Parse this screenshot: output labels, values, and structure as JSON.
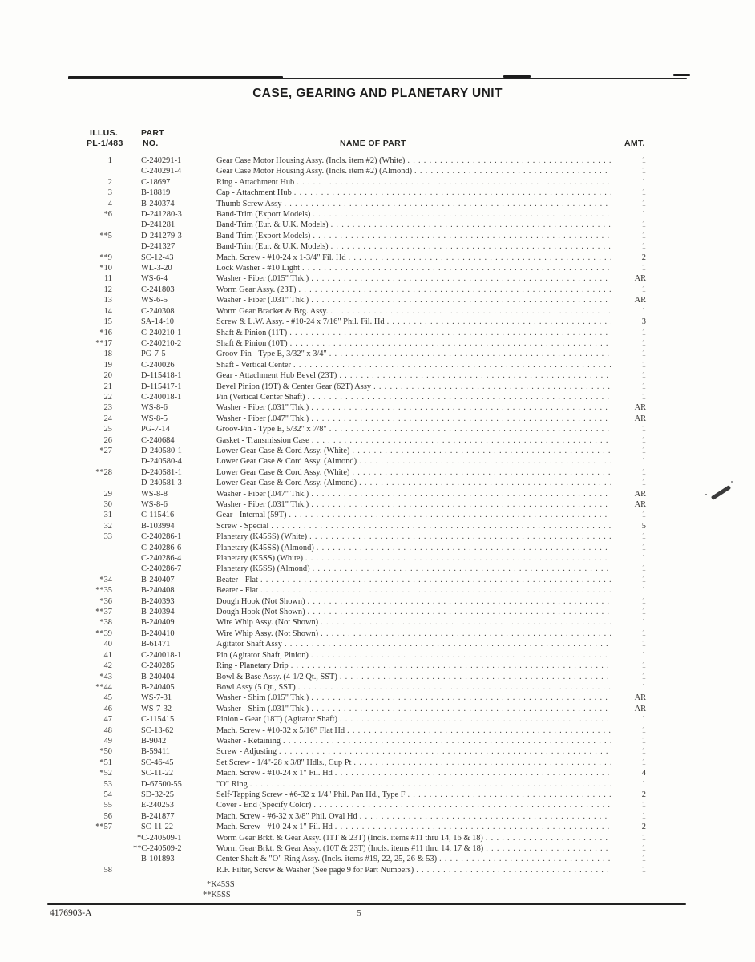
{
  "page": {
    "title": "CASE, GEARING AND PLANETARY UNIT",
    "footer_doc_number": "4176903-A",
    "footer_page_number": "5"
  },
  "table": {
    "headers": {
      "illus_line1": "ILLUS.",
      "illus_line2": "PL-1/483",
      "part_line1": "PART",
      "part_line2": "NO.",
      "name": "NAME OF PART",
      "amt": "AMT."
    },
    "rows": [
      {
        "illus": "1",
        "part": "C-240291-1",
        "name": "Gear Case Motor Housing Assy. (Incls. item #2) (White)",
        "amt": "1"
      },
      {
        "illus": "",
        "part": "C-240291-4",
        "name": "Gear Case Motor Housing Assy. (Incls. item #2) (Almond)",
        "amt": "1"
      },
      {
        "illus": "2",
        "part": "C-18697",
        "name": "Ring - Attachment Hub",
        "amt": "1"
      },
      {
        "illus": "3",
        "part": "B-18819",
        "name": "Cap - Attachment Hub",
        "amt": "1"
      },
      {
        "illus": "4",
        "part": "B-240374",
        "name": "Thumb Screw Assy",
        "amt": "1"
      },
      {
        "illus": "*6",
        "part": "D-241280-3",
        "name": "Band-Trim (Export Models)",
        "amt": "1"
      },
      {
        "illus": "",
        "part": "D-241281",
        "name": "Band-Trim (Eur. & U.K. Models)",
        "amt": "1"
      },
      {
        "illus": "**5",
        "part": "D-241279-3",
        "name": "Band-Trim (Export Models)",
        "amt": "1"
      },
      {
        "illus": "",
        "part": "D-241327",
        "name": "Band-Trim (Eur. & U.K. Models)",
        "amt": "1"
      },
      {
        "illus": "**9",
        "part": "SC-12-43",
        "name": "Mach. Screw - #10-24 x 1-3/4\" Fil. Hd",
        "amt": "2"
      },
      {
        "illus": "*10",
        "part": "WL-3-20",
        "name": "Lock Washer - #10 Light",
        "amt": "1"
      },
      {
        "illus": "11",
        "part": "WS-6-4",
        "name": "Washer - Fiber (.015\" Thk.)",
        "amt": "AR"
      },
      {
        "illus": "12",
        "part": "C-241803",
        "name": "Worm Gear Assy. (23T)",
        "amt": "1"
      },
      {
        "illus": "13",
        "part": "WS-6-5",
        "name": "Washer - Fiber (.031\" Thk.)",
        "amt": "AR"
      },
      {
        "illus": "14",
        "part": "C-240308",
        "name": "Worm Gear Bracket & Brg. Assy.",
        "amt": "1"
      },
      {
        "illus": "15",
        "part": "SA-14-10",
        "name": "Screw & L.W. Assy. - #10-24 x 7/16\" Phil. Fil. Hd",
        "amt": "3"
      },
      {
        "illus": "*16",
        "part": "C-240210-1",
        "name": "Shaft & Pinion (11T)",
        "amt": "1"
      },
      {
        "illus": "**17",
        "part": "C-240210-2",
        "name": "Shaft & Pinion (10T)",
        "amt": "1"
      },
      {
        "illus": "18",
        "part": "PG-7-5",
        "name": "Groov-Pin - Type E, 3/32\" x 3/4\"",
        "amt": "1"
      },
      {
        "illus": "19",
        "part": "C-240026",
        "name": "Shaft - Vertical Center",
        "amt": "1"
      },
      {
        "illus": "20",
        "part": "D-115418-1",
        "name": "Gear - Attachment Hub Bevel (23T)",
        "amt": "1"
      },
      {
        "illus": "21",
        "part": "D-115417-1",
        "name": "Bevel Pinion (19T) & Center Gear (62T) Assy",
        "amt": "1"
      },
      {
        "illus": "22",
        "part": "C-240018-1",
        "name": "Pin (Vertical Center Shaft)",
        "amt": "1"
      },
      {
        "illus": "23",
        "part": "WS-8-6",
        "name": "Washer - Fiber (.031\" Thk.)",
        "amt": "AR"
      },
      {
        "illus": "24",
        "part": "WS-8-5",
        "name": "Washer - Fiber (.047\" Thk.)",
        "amt": "AR"
      },
      {
        "illus": "25",
        "part": "PG-7-14",
        "name": "Groov-Pin - Type E, 5/32\" x 7/8\"",
        "amt": "1"
      },
      {
        "illus": "26",
        "part": "C-240684",
        "name": "Gasket - Transmission Case",
        "amt": "1"
      },
      {
        "illus": "*27",
        "part": "D-240580-1",
        "name": "Lower Gear Case & Cord Assy. (White)",
        "amt": "1"
      },
      {
        "illus": "",
        "part": "D-240580-4",
        "name": "Lower Gear Case & Cord Assy. (Almond)",
        "amt": "1"
      },
      {
        "illus": "**28",
        "part": "D-240581-1",
        "name": "Lower Gear Case & Cord Assy. (White)",
        "amt": "1"
      },
      {
        "illus": "",
        "part": "D-240581-3",
        "name": "Lower Gear Case & Cord Assy. (Almond)",
        "amt": "1"
      },
      {
        "illus": "29",
        "part": "WS-8-8",
        "name": "Washer - Fiber (.047\" Thk.)",
        "amt": "AR"
      },
      {
        "illus": "30",
        "part": "WS-8-6",
        "name": "Washer - Fiber (.031\" Thk.)",
        "amt": "AR"
      },
      {
        "illus": "31",
        "part": "C-115416",
        "name": "Gear - Internal (59T)",
        "amt": "1"
      },
      {
        "illus": "32",
        "part": "B-103994",
        "name": "Screw - Special",
        "amt": "5"
      },
      {
        "illus": "33",
        "part": "C-240286-1",
        "name": "Planetary (K45SS) (White)",
        "amt": "1"
      },
      {
        "illus": "",
        "part": "C-240286-6",
        "name": "Planetary (K45SS) (Almond)",
        "amt": "1"
      },
      {
        "illus": "",
        "part": "C-240286-4",
        "name": "Planetary (K5SS) (White)",
        "amt": "1"
      },
      {
        "illus": "",
        "part": "C-240286-7",
        "name": "Planetary (K5SS) (Almond)",
        "amt": "1"
      },
      {
        "illus": "*34",
        "part": "B-240407",
        "name": "Beater - Flat",
        "amt": "1"
      },
      {
        "illus": "**35",
        "part": "B-240408",
        "name": "Beater - Flat",
        "amt": "1"
      },
      {
        "illus": "*36",
        "part": "B-240393",
        "name": "Dough Hook (Not Shown)",
        "amt": "1"
      },
      {
        "illus": "**37",
        "part": "B-240394",
        "name": "Dough Hook (Not Shown)",
        "amt": "1"
      },
      {
        "illus": "*38",
        "part": "B-240409",
        "name": "Wire Whip Assy. (Not Shown)",
        "amt": "1"
      },
      {
        "illus": "**39",
        "part": "B-240410",
        "name": "Wire Whip Assy. (Not Shown)",
        "amt": "1"
      },
      {
        "illus": "40",
        "part": "B-61471",
        "name": "Agitator Shaft Assy",
        "amt": "1"
      },
      {
        "illus": "41",
        "part": "C-240018-1",
        "name": "Pin (Agitator Shaft, Pinion)",
        "amt": "1"
      },
      {
        "illus": "42",
        "part": "C-240285",
        "name": "Ring - Planetary Drip",
        "amt": "1"
      },
      {
        "illus": "*43",
        "part": "B-240404",
        "name": "Bowl & Base Assy. (4-1/2 Qt., SST)",
        "amt": "1"
      },
      {
        "illus": "**44",
        "part": "B-240405",
        "name": "Bowl Assy (5 Qt., SST)",
        "amt": "1"
      },
      {
        "illus": "45",
        "part": "WS-7-31",
        "name": "Washer - Shim (.015\" Thk.)",
        "amt": "AR"
      },
      {
        "illus": "46",
        "part": "WS-7-32",
        "name": "Washer - Shim (.031\" Thk.)",
        "amt": "AR"
      },
      {
        "illus": "47",
        "part": "C-115415",
        "name": "Pinion - Gear (18T) (Agitator Shaft)",
        "amt": "1"
      },
      {
        "illus": "48",
        "part": "SC-13-62",
        "name": "Mach. Screw - #10-32 x 5/16\" Flat Hd",
        "amt": "1"
      },
      {
        "illus": "49",
        "part": "B-9042",
        "name": "Washer - Retaining",
        "amt": "1"
      },
      {
        "illus": "*50",
        "part": "B-59411",
        "name": "Screw - Adjusting",
        "amt": "1"
      },
      {
        "illus": "*51",
        "part": "SC-46-45",
        "name": "Set Screw - 1/4\"-28 x 3/8\" Hdls., Cup Pt",
        "amt": "1"
      },
      {
        "illus": "*52",
        "part": "SC-11-22",
        "name": "Mach. Screw - #10-24 x 1\" Fil. Hd",
        "amt": "4"
      },
      {
        "illus": "53",
        "part": "D-67500-55",
        "name": "\"O\" Ring",
        "amt": "1"
      },
      {
        "illus": "54",
        "part": "SD-32-25",
        "name": "Self-Tapping Screw - #6-32 x 1/4\" Phil. Pan Hd., Type F",
        "amt": "2"
      },
      {
        "illus": "55",
        "part": "E-240253",
        "name": "Cover - End (Specify Color)",
        "amt": "1"
      },
      {
        "illus": "56",
        "part": "B-241877",
        "name": "Mach. Screw - #6-32 x 3/8\" Phil. Oval Hd",
        "amt": "1"
      },
      {
        "illus": "**57",
        "part": "SC-11-22",
        "name": "Mach. Screw - #10-24 x 1\" Fil. Hd",
        "amt": "2"
      },
      {
        "illus": "",
        "part": "*C-240509-1",
        "name": "Worm Gear Brkt. & Gear Assy. (11T & 23T) (Incls. items #11 thru 14, 16 & 18)",
        "amt": "1"
      },
      {
        "illus": "",
        "part": "**C-240509-2",
        "name": "Worm Gear Brkt. & Gear Assy. (10T & 23T) (Incls. items #11 thru 14, 17 & 18)",
        "amt": "1"
      },
      {
        "illus": "",
        "part": "B-101893",
        "name": "Center Shaft & \"O\" Ring Assy. (Incls. items #19, 22, 25, 26 & 53)",
        "amt": "1"
      },
      {
        "illus": "58",
        "part": "",
        "name": "R.F. Filter, Screw & Washer (See page 9 for Part Numbers)",
        "amt": "1"
      }
    ],
    "footnotes": [
      "*K45SS",
      "**K5SS"
    ]
  }
}
